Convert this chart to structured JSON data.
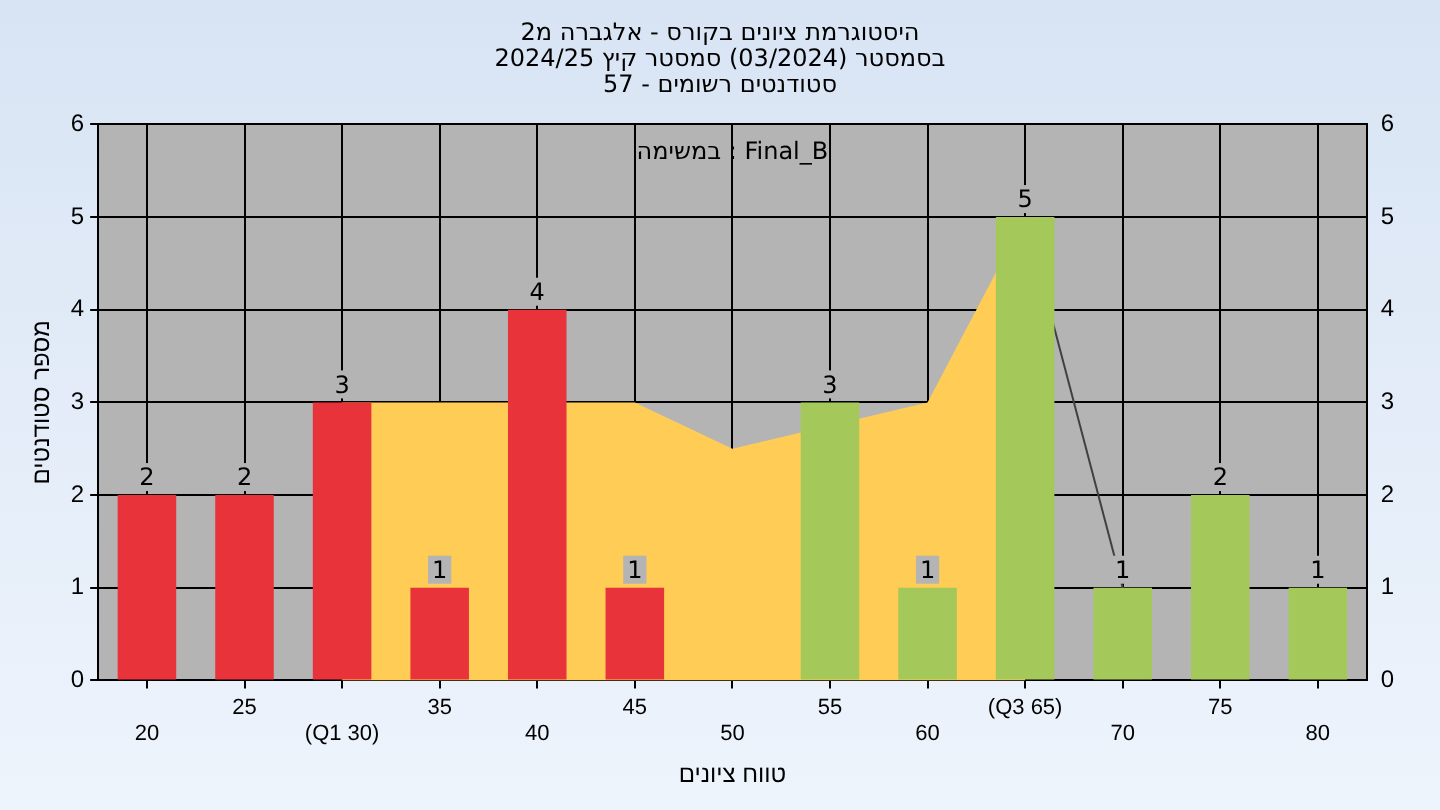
{
  "chart_data": {
    "type": "bar",
    "title": "היסטוגרמת ציונים בקורס - אלגברה מ2",
    "subtitle": "בסמסטר (03/2024) סמסטר קיץ 2024/25\nסטודנטים רשומים - 57",
    "xlabel": "טווח ציונים",
    "ylabel": "מספר סטודנטים",
    "annotations": [
      "במשימה : Final_B"
    ],
    "categories": [
      "20",
      "25",
      "(Q1 30)",
      "35",
      "40",
      "45",
      "50",
      "55",
      "60",
      "(Q3 65)",
      "70",
      "75",
      "80"
    ],
    "series": [
      {
        "type": "area",
        "color": "#ffcc55",
        "values": [
          null,
          null,
          3,
          3,
          null,
          3,
          2.5,
          null,
          3,
          5,
          null,
          null,
          null
        ]
      },
      {
        "type": "line",
        "color": "#404040",
        "values": [
          null,
          null,
          null,
          null,
          null,
          null,
          null,
          null,
          null,
          5,
          1,
          null,
          null
        ]
      },
      {
        "colors": [
          "#e8333a",
          "#e8333a",
          "#e8333a",
          "#e8333a",
          "#e8333a",
          "#e8333a",
          "#e8333a",
          "#a4c85a",
          "#a4c85a",
          "#a4c85a",
          "#a4c85a",
          "#a4c85a",
          "#a4c85a"
        ],
        "values": [
          2,
          2,
          3,
          1,
          4,
          1,
          null,
          3,
          1,
          5,
          1,
          2,
          1
        ],
        "value_labels": [
          "2",
          "2",
          "3",
          "1",
          "4",
          "1",
          null,
          "3",
          "1",
          "5",
          "1",
          "2",
          "1"
        ]
      }
    ],
    "ylim": [
      0,
      6
    ],
    "yticks": [
      0,
      1,
      2,
      3,
      4,
      5,
      6
    ],
    "y2lim": [
      0,
      6
    ],
    "y2ticks": [
      0,
      1,
      2,
      3,
      4,
      5,
      6
    ],
    "grid": true,
    "legend": false
  }
}
